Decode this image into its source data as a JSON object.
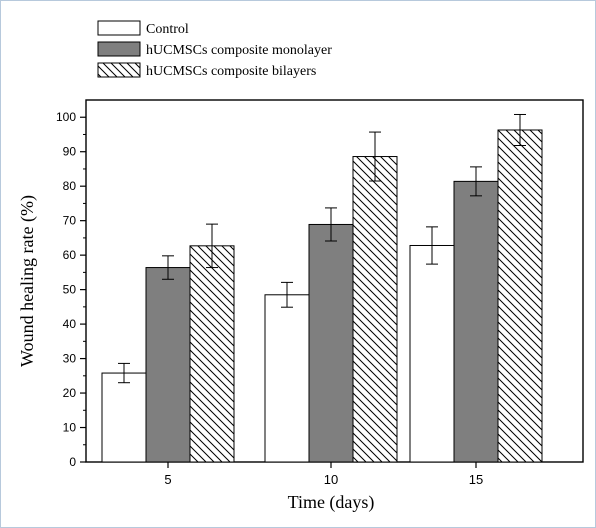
{
  "chart_data": {
    "type": "bar",
    "xlabel": "Time (days)",
    "ylabel": "Wound healing rate (%)",
    "categories": [
      "5",
      "10",
      "15"
    ],
    "ylim": [
      0,
      105
    ],
    "yticks": [
      "0",
      "10",
      "20",
      "30",
      "40",
      "50",
      "60",
      "70",
      "80",
      "90",
      "100"
    ],
    "grid": false,
    "legend_position": "top-left",
    "series": [
      {
        "name": "Control",
        "fill": "white",
        "values": [
          25.8,
          48.5,
          62.8
        ],
        "errors": [
          2.8,
          3.6,
          5.4
        ]
      },
      {
        "name": "hUCMSCs composite monolayer",
        "fill": "gray",
        "values": [
          56.4,
          68.9,
          81.4
        ],
        "errors": [
          3.4,
          4.8,
          4.2
        ]
      },
      {
        "name": "hUCMSCs composite bilayers",
        "fill": "hatch",
        "values": [
          62.7,
          88.6,
          96.3
        ],
        "errors": [
          6.3,
          7.1,
          4.5
        ]
      }
    ]
  },
  "colors": {
    "frame": "#b7c9dc",
    "axis": "#000000",
    "gray_fill": "#7f7f7f",
    "white_fill": "#ffffff"
  }
}
